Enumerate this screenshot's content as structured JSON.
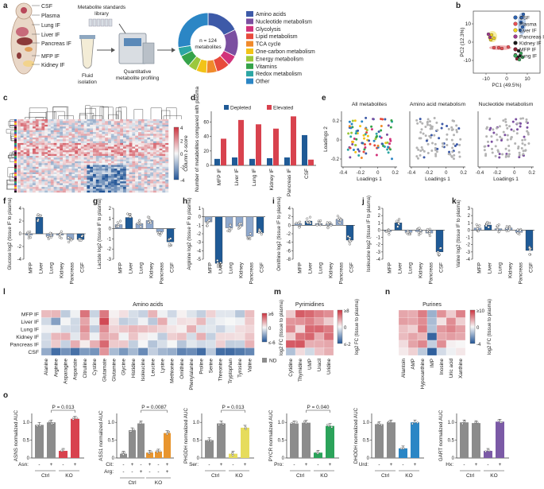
{
  "panels": {
    "a": "a",
    "b": "b",
    "c": "c",
    "d": "d",
    "e": "e",
    "f": "f",
    "g": "g",
    "h": "h",
    "i": "i",
    "j": "j",
    "k": "k",
    "l": "l",
    "m": "m",
    "n": "n",
    "o": "o"
  },
  "panel_a": {
    "body_labels": [
      "CSF",
      "Plasma",
      "Lung IF",
      "Liver IF",
      "Pancreas IF",
      "MFP IF",
      "Kidney IF"
    ],
    "library_label": "Metabolite standards library",
    "fluid_label": "Fluid isolation",
    "profiling_label": "Quantitative metabolite profiling",
    "donut_center": "n = 124 metabolites",
    "classes": [
      {
        "name": "Amino acids",
        "color": "#3d5aa8",
        "value": 22
      },
      {
        "name": "Nucleotide metabolism",
        "color": "#7b4fa0",
        "value": 18
      },
      {
        "name": "Glycolysis",
        "color": "#d2327a",
        "value": 7
      },
      {
        "name": "Lipid metabolism",
        "color": "#e84a3c",
        "value": 9
      },
      {
        "name": "TCA cycle",
        "color": "#f08a2b",
        "value": 7
      },
      {
        "name": "One-carbon metabolism",
        "color": "#f2c318",
        "value": 7
      },
      {
        "name": "Energy metabolism",
        "color": "#9bc83c",
        "value": 6
      },
      {
        "name": "Vitamins",
        "color": "#35a34a",
        "value": 8
      },
      {
        "name": "Redox metabolism",
        "color": "#2ca6a4",
        "value": 6
      },
      {
        "name": "Other",
        "color": "#2b86c5",
        "value": 34
      }
    ]
  },
  "panel_b": {
    "xlabel": "PC1 (49.5%)",
    "ylabel": "PC2 (12.3%)",
    "xticks": [
      "-10",
      "0",
      "10"
    ],
    "yticks": [
      "10",
      "0",
      "-10"
    ],
    "legend": [
      {
        "name": "CSF",
        "color": "#2c62b0"
      },
      {
        "name": "Plasma",
        "color": "#e84f54"
      },
      {
        "name": "Liver IF",
        "color": "#f2d21e"
      },
      {
        "name": "Pancreas IF",
        "color": "#9e3a8e"
      },
      {
        "name": "Kidney IF",
        "color": "#1a1a1a"
      },
      {
        "name": "MFP IF",
        "color": "#8a1f33"
      },
      {
        "name": "Lung IF",
        "color": "#3aa35a"
      }
    ]
  },
  "panel_c": {
    "colorbar_label": "Column z-score",
    "colorbar_ticks": [
      "4",
      "2",
      "0",
      "-2",
      "-4"
    ]
  },
  "chart_data": [
    {
      "type": "bar",
      "panel": "d",
      "title": "",
      "ylabel": "Number of metabolites compared with plasma",
      "categories": [
        "MFP IF",
        "Liver IF",
        "Lung IF",
        "Kidney IF",
        "Pancreas IF",
        "CSF"
      ],
      "yticks": [
        "0",
        "20",
        "40",
        "60"
      ],
      "ylim": [
        0,
        75
      ],
      "series": [
        {
          "name": "Depleted",
          "color": "#1f5a96",
          "values": [
            9,
            11,
            9,
            10,
            11,
            42
          ]
        },
        {
          "name": "Elevated",
          "color": "#d8424e",
          "values": [
            37,
            63,
            57,
            51,
            68,
            8
          ]
        }
      ]
    },
    {
      "type": "bar",
      "panel": "f",
      "ylabel": "Glucose log2 (tissue IF to plasma)",
      "categories": [
        "MFP",
        "Liver",
        "Lung",
        "Kidney",
        "Pancreas",
        "CSF"
      ],
      "yticks": [
        "4",
        "2",
        "0",
        "-2",
        "-4"
      ],
      "ylim": [
        -4,
        4
      ],
      "values": [
        -0.2,
        2.6,
        -0.4,
        -0.2,
        -0.9,
        -0.9
      ]
    },
    {
      "type": "bar",
      "panel": "g",
      "ylabel": "Lactate log2 (tissue IF to plasma)",
      "categories": [
        "MFP",
        "Liver",
        "Lung",
        "Kidney",
        "Pancreas",
        "CSF"
      ],
      "yticks": [
        "2",
        "1",
        "0",
        "-1",
        "-2",
        "-3"
      ],
      "ylim": [
        -3,
        2
      ],
      "values": [
        0.4,
        1.1,
        0.5,
        0.8,
        -0.3,
        -1.3
      ]
    },
    {
      "type": "bar",
      "panel": "h",
      "ylabel": "Arginine log2 (tissue IF to plasma)",
      "categories": [
        "MFP",
        "Liver",
        "Lung",
        "Kidney",
        "Pancreas",
        "CSF"
      ],
      "yticks": [
        "1",
        "0",
        "-1",
        "-2",
        "-3",
        "-4",
        "-5"
      ],
      "ylim": [
        -5,
        1
      ],
      "values": [
        -0.6,
        -5.5,
        -1.3,
        -1.1,
        -2.3,
        -1.9
      ]
    },
    {
      "type": "bar",
      "panel": "i",
      "ylabel": "Ornithine log2 (tissue IF to plasma)",
      "categories": [
        "MFP",
        "Liver",
        "Lung",
        "Kidney",
        "Pancreas",
        "CSF"
      ],
      "yticks": [
        "4",
        "2",
        "0",
        "-2",
        "-4",
        "-6",
        "-8"
      ],
      "ylim": [
        -8,
        4
      ],
      "values": [
        0.4,
        1.0,
        0.4,
        0.3,
        1.4,
        -3.5
      ]
    },
    {
      "type": "bar",
      "panel": "j",
      "ylabel": "Isoleucine log2 (tissue IF to plasma)",
      "categories": [
        "MFP",
        "Liver",
        "Lung",
        "Kidney",
        "Pancreas",
        "CSF"
      ],
      "yticks": [
        "3",
        "2",
        "1",
        "0",
        "-1",
        "-2",
        "-3",
        "-4"
      ],
      "ylim": [
        -4,
        3
      ],
      "values": [
        -0.2,
        1.0,
        -0.3,
        -0.2,
        -0.4,
        -3.0
      ]
    },
    {
      "type": "bar",
      "panel": "k",
      "ylabel": "Valine log2 (tissue IF to plasma)",
      "categories": [
        "MFP",
        "Liver",
        "Lung",
        "Kidney",
        "Pancreas",
        "CSF"
      ],
      "yticks": [
        "3",
        "2",
        "1",
        "0",
        "-1",
        "-2",
        "-3",
        "-4"
      ],
      "ylim": [
        -4,
        3
      ],
      "values": [
        0.3,
        0.7,
        0.2,
        0.3,
        -0.3,
        -2.8
      ]
    },
    {
      "type": "bar",
      "panel": "o",
      "ylabel": "ASNS normalized AUC",
      "rows": [
        "Asn:"
      ],
      "toggles": [
        [
          "-",
          "+",
          "-",
          "+"
        ]
      ],
      "groups": [
        "Ctrl",
        "KO"
      ],
      "pvalue": "P = 0.013",
      "yticks": [
        "0",
        "0.5",
        "1.0"
      ],
      "ylim": [
        0,
        1.25
      ],
      "values": [
        0.93,
        1.0,
        0.2,
        1.1
      ],
      "colors": [
        "#8c8c8c",
        "#8c8c8c",
        "#d8424e",
        "#d8424e"
      ]
    },
    {
      "type": "bar",
      "panel": "o",
      "ylabel": "ASS1 normalized AUC",
      "rows": [
        "Cit:",
        "Arg:"
      ],
      "toggles": [
        [
          "-",
          "+",
          "-",
          "+",
          "-",
          "+"
        ],
        [
          "-",
          "-",
          "+",
          "-",
          "-",
          "+"
        ]
      ],
      "groups": [
        "Ctrl",
        "KO"
      ],
      "pvalue": "P = 0.0087",
      "yticks": [
        "0",
        "0.5",
        "1.0"
      ],
      "ylim": [
        0,
        1.25
      ],
      "values": [
        0.12,
        0.78,
        0.97,
        0.15,
        0.18,
        0.7
      ],
      "colors": [
        "#8c8c8c",
        "#8c8c8c",
        "#8c8c8c",
        "#e8952f",
        "#e8952f",
        "#e8952f"
      ]
    },
    {
      "type": "bar",
      "panel": "o",
      "ylabel": "PHGDH normalized AUC",
      "rows": [
        "Ser:"
      ],
      "toggles": [
        [
          "-",
          "+",
          "-",
          "+"
        ]
      ],
      "groups": [
        "Ctrl",
        "KO"
      ],
      "pvalue": "P = 0.013",
      "yticks": [
        "0",
        "0.5",
        "1.0"
      ],
      "ylim": [
        0,
        1.25
      ],
      "values": [
        0.5,
        0.97,
        0.12,
        0.85
      ],
      "colors": [
        "#8c8c8c",
        "#8c8c8c",
        "#e6dc5c",
        "#e6dc5c"
      ]
    },
    {
      "type": "bar",
      "panel": "o",
      "ylabel": "PYCR normalized AUC",
      "rows": [
        "Pro:"
      ],
      "toggles": [
        [
          "-",
          "+",
          "-",
          "+"
        ]
      ],
      "groups": [
        "Ctrl",
        "KO"
      ],
      "pvalue": "P = 0.040",
      "yticks": [
        "0",
        "0.5",
        "1.0"
      ],
      "ylim": [
        0,
        1.25
      ],
      "values": [
        0.97,
        0.99,
        0.15,
        0.9
      ],
      "colors": [
        "#8c8c8c",
        "#8c8c8c",
        "#2ba35a",
        "#2ba35a"
      ]
    },
    {
      "type": "bar",
      "panel": "o",
      "ylabel": "DHODH normalized AUC",
      "rows": [
        "Urd:"
      ],
      "toggles": [
        [
          "-",
          "+",
          "-",
          "+"
        ]
      ],
      "groups": [
        "Ctrl",
        "KO"
      ],
      "yticks": [
        "0",
        "0.5",
        "1.0"
      ],
      "ylim": [
        0,
        1.25
      ],
      "values": [
        0.95,
        1.0,
        0.27,
        1.0
      ],
      "colors": [
        "#8c8c8c",
        "#8c8c8c",
        "#2b86c5",
        "#2b86c5"
      ]
    },
    {
      "type": "bar",
      "panel": "o",
      "ylabel": "GART normalized AUC",
      "rows": [
        "Hx:"
      ],
      "toggles": [
        [
          "-",
          "+",
          "-",
          "+"
        ]
      ],
      "groups": [
        "Ctrl",
        "KO"
      ],
      "yticks": [
        "0",
        "0.5",
        "1.0"
      ],
      "ylim": [
        0,
        1.25
      ],
      "values": [
        1.0,
        0.98,
        0.2,
        1.02
      ],
      "colors": [
        "#8c8c8c",
        "#8c8c8c",
        "#7b5aa6",
        "#7b5aa6"
      ]
    }
  ],
  "panel_e": {
    "titles": [
      "All metabolites",
      "Amino acid metabolism",
      "Nucleotide metabolism"
    ],
    "xlabel": "Loadings 1",
    "ylabel": "Loadings 2",
    "xticks": [
      "-0.4",
      "-0.2",
      "0",
      "0.2"
    ],
    "yticks": [
      "0.2",
      "0",
      "-0.2"
    ]
  },
  "panel_l": {
    "title": "Amino acids",
    "rows": [
      "MFP IF",
      "Liver IF",
      "Lung IF",
      "Kidney IF",
      "Pancreas IF",
      "CSF"
    ],
    "columns": [
      "Alanine",
      "Arginine",
      "Asparagine",
      "Aspartate",
      "Citrulline",
      "Cystine",
      "Glutamate",
      "Glutamine",
      "Glycine",
      "Histidine",
      "Isoleucine",
      "Leucine",
      "Lysine",
      "Methionine",
      "Ornithine",
      "Phenylalanine",
      "Proline",
      "Serine",
      "Threonine",
      "Tryptophan",
      "Tyrosine",
      "Valine"
    ],
    "legend_title": "log2 FC (tissue to plasma)",
    "legend_ticks": [
      "≥6",
      "0",
      "≤-6"
    ],
    "nd_label": "ND"
  },
  "panel_m": {
    "title": "Pyrimidines",
    "columns": [
      "Cytidine",
      "Thymidine",
      "UMP",
      "Uracil",
      "Uridine"
    ],
    "legend_title": "log2 FC (tissue to plasma)",
    "legend_ticks": [
      "≥8",
      "0",
      "≤-2"
    ]
  },
  "panel_n": {
    "title": "Purines",
    "columns": [
      "Allantoin",
      "AMP",
      "Hypoxanthine",
      "IMP",
      "Inosine",
      "Uric acid",
      "Xanthine"
    ],
    "legend_title": "log2 FC (tissue to plasma)",
    "legend_ticks": [
      "≥10",
      "0",
      "-4"
    ]
  }
}
